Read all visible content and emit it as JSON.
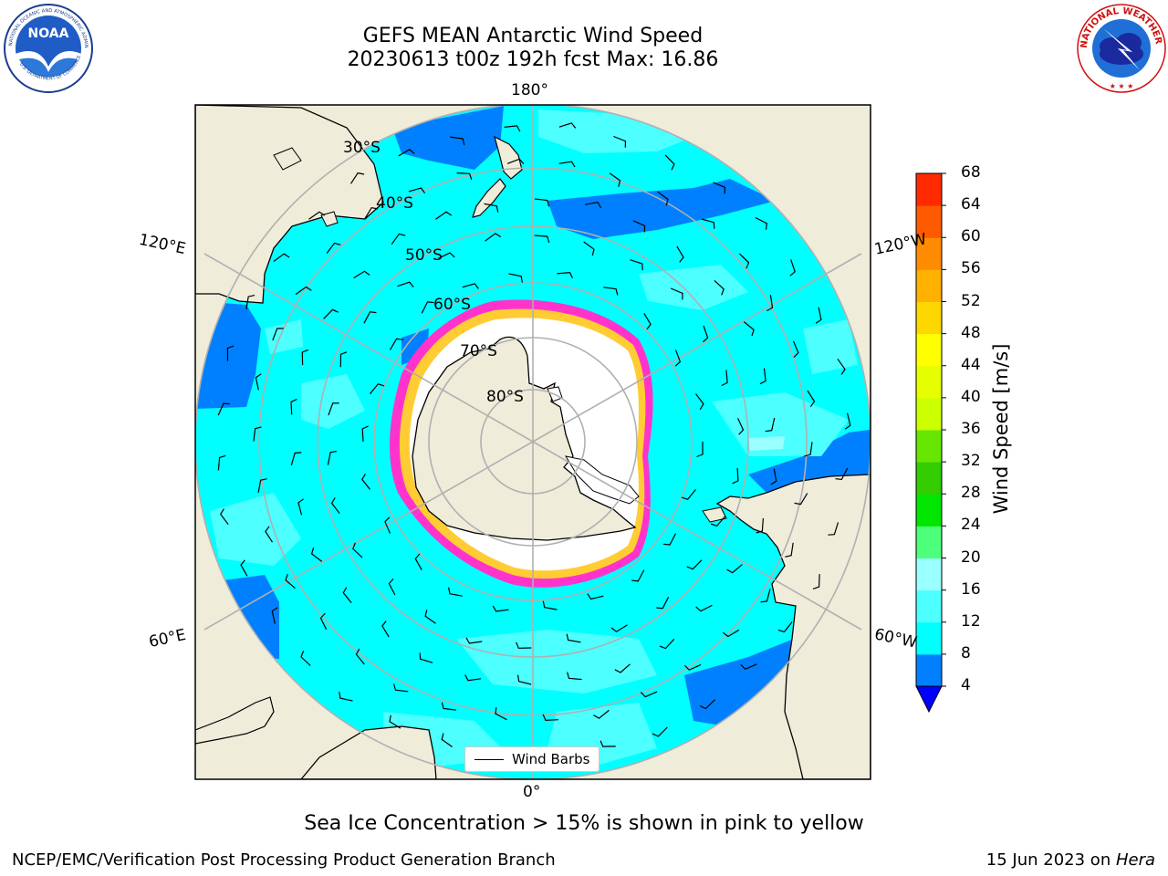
{
  "title": {
    "line1": "GEFS MEAN Antarctic Wind Speed",
    "line2": "20230613 t00z 192h fcst   Max: 16.86"
  },
  "logos": {
    "noaa": {
      "text": "NOAA",
      "ring_text": "NATIONAL OCEANIC AND ATMOSPHERIC ADMINISTRATION",
      "ring_text_bottom": "U.S. DEPARTMENT OF COMMERCE"
    },
    "nws": {
      "ring_text": "NATIONAL WEATHER SERVICE"
    }
  },
  "map": {
    "projection": "south-polar-stereographic",
    "longitude_labels": {
      "top": "180°",
      "bottom": "0°",
      "upper_left": "120°E",
      "upper_right": "120°W",
      "lower_left": "60°E",
      "lower_right": "60°W"
    },
    "latitude_labels": [
      "30°S",
      "40°S",
      "50°S",
      "60°S",
      "70°S",
      "80°S"
    ],
    "legend_label": "Wind Barbs",
    "colors": {
      "land": "#efecda",
      "ice": "#ffffff",
      "ice_edge": "#ff33cc",
      "ice_fringe": "#ffcc33",
      "grid": "#b0b0b0"
    }
  },
  "colorbar": {
    "label": "Wind Speed [m/s]",
    "ticks": [
      "4",
      "8",
      "12",
      "16",
      "20",
      "24",
      "28",
      "32",
      "36",
      "40",
      "44",
      "48",
      "52",
      "56",
      "60",
      "64",
      "68"
    ],
    "colors": [
      "#0080ff",
      "#00ffff",
      "#4dffff",
      "#99ffff",
      "#4dff7a",
      "#00e600",
      "#33cc00",
      "#66e600",
      "#ccff00",
      "#e6ff00",
      "#ffff00",
      "#ffd700",
      "#ffb000",
      "#ff8c00",
      "#ff5a00",
      "#ff2a00"
    ],
    "extend_min_color": "#0000ff"
  },
  "caption": "Sea Ice Concentration > 15% is shown in pink to yellow",
  "footer": {
    "left": "NCEP/EMC/Verification Post Processing Product Generation Branch",
    "right_prefix": "15 Jun 2023 on ",
    "right_italic": "Hera"
  }
}
